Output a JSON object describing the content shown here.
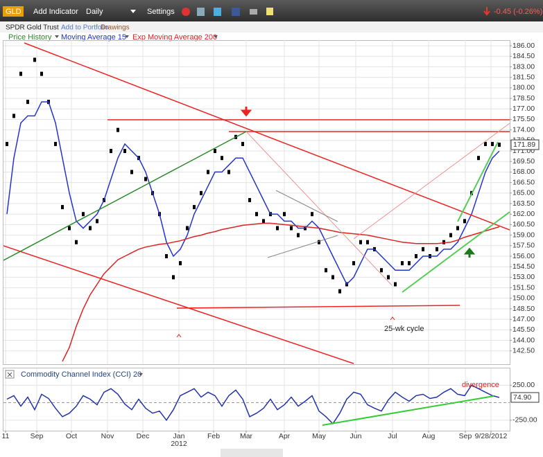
{
  "toolbar": {
    "symbol": "GLD",
    "add_indicator": "Add Indicator",
    "period": "Daily",
    "settings": "Settings",
    "change": "-0.45 (-0.26%)",
    "name": "SPDR Gold Trust",
    "add_portfolio": "Add to Portfolio",
    "drawings": "Drawings"
  },
  "annotations": {
    "cycle": "25-wk cycle",
    "divergence": "divergence",
    "year": "2012"
  },
  "chart_data": [
    {
      "type": "stock",
      "xlim": [
        -0.5,
        72.5
      ],
      "ylim": [
        140.6,
        186.8
      ],
      "grid": true,
      "yticks": [
        {
          "value": 186,
          "label": "186.00"
        },
        {
          "value": 184.5,
          "label": "184.50"
        },
        {
          "value": 183,
          "label": "183.00"
        },
        {
          "value": 181.5,
          "label": "181.50"
        },
        {
          "value": 180,
          "label": "180.00"
        },
        {
          "value": 178.5,
          "label": "178.50"
        },
        {
          "value": 177,
          "label": "177.00"
        },
        {
          "value": 175.5,
          "label": "175.50"
        },
        {
          "value": 174,
          "label": "174.00"
        },
        {
          "value": 172.5,
          "label": "172.50"
        },
        {
          "value": 171,
          "label": "171.00"
        },
        {
          "value": 169.5,
          "label": "169.50"
        },
        {
          "value": 168,
          "label": "168.00"
        },
        {
          "value": 166.5,
          "label": "166.50"
        },
        {
          "value": 165,
          "label": "165.00"
        },
        {
          "value": 163.5,
          "label": "163.50"
        },
        {
          "value": 162,
          "label": "162.00"
        },
        {
          "value": 160.5,
          "label": "160.50"
        },
        {
          "value": 159,
          "label": "159.00"
        },
        {
          "value": 157.5,
          "label": "157.50"
        },
        {
          "value": 156,
          "label": "156.00"
        },
        {
          "value": 154.5,
          "label": "154.50"
        },
        {
          "value": 153,
          "label": "153.00"
        },
        {
          "value": 151.5,
          "label": "151.50"
        },
        {
          "value": 150,
          "label": "150.00"
        },
        {
          "value": 148.5,
          "label": "148.50"
        },
        {
          "value": 147,
          "label": "147.00"
        },
        {
          "value": 145.5,
          "label": "145.50"
        },
        {
          "value": 144,
          "label": "144.00"
        },
        {
          "value": 142.5,
          "label": "142.50"
        }
      ],
      "last_label": {
        "value": 171.89,
        "label": "171.89"
      },
      "series": [
        {
          "name": "Price History",
          "color": "#000000",
          "style": "bar",
          "values": [
            172,
            176,
            182,
            178,
            184,
            182,
            178,
            172,
            163,
            160,
            158,
            162,
            160,
            161,
            164,
            171,
            174,
            171,
            168,
            170,
            167,
            165,
            162,
            156,
            153,
            155,
            160,
            163,
            165,
            168,
            171,
            170,
            168,
            173,
            172,
            164,
            162,
            161,
            162,
            160,
            162,
            160,
            159,
            160,
            162,
            158,
            154,
            153,
            151,
            152,
            155,
            158,
            158,
            157,
            154,
            153,
            152,
            155,
            155,
            156,
            157,
            156,
            157,
            158,
            159,
            160,
            161,
            165,
            170,
            172,
            172,
            171.89
          ]
        },
        {
          "name": "Moving Average 15",
          "color": "#2233cc",
          "style": "line",
          "values": [
            162,
            170,
            175,
            176,
            176,
            178,
            178,
            175,
            170,
            165,
            161,
            160,
            161,
            162,
            164,
            167,
            170,
            172,
            171,
            170,
            168,
            165,
            162,
            158,
            156,
            157,
            159,
            162,
            164,
            166,
            168,
            168,
            169,
            170,
            170,
            168,
            166,
            164,
            162,
            162,
            161,
            161,
            160,
            160,
            161,
            160,
            158,
            156,
            154,
            152,
            153,
            155,
            157,
            157,
            156,
            155,
            154,
            154,
            154,
            155,
            156,
            156,
            156,
            157,
            157,
            158,
            160,
            162,
            165,
            168,
            170,
            171
          ]
        },
        {
          "name": "Exp Moving Average 200",
          "color": "#dd2222",
          "style": "line",
          "values": [
            null,
            null,
            null,
            null,
            null,
            null,
            null,
            null,
            141,
            143,
            146,
            148.5,
            150.5,
            152,
            153.5,
            154.5,
            155.5,
            156,
            156.5,
            157,
            157.3,
            157.5,
            157.7,
            157.8,
            158,
            158.2,
            158.5,
            158.8,
            159,
            159.3,
            159.5,
            159.8,
            160,
            160.2,
            160.4,
            160.5,
            160.6,
            160.7,
            160.7,
            160.6,
            160.5,
            160.4,
            160.3,
            160.2,
            160.1,
            160,
            159.8,
            159.6,
            159.4,
            159.3,
            159.2,
            159.1,
            159,
            158.8,
            158.6,
            158.4,
            158.2,
            158,
            157.9,
            157.8,
            157.8,
            157.8,
            157.8,
            157.9,
            158,
            158.3,
            158.7,
            159,
            159.3,
            159.6,
            159.9,
            160.2
          ]
        }
      ]
    },
    {
      "type": "line",
      "title": "Commodity Channel Index (CCI) 20",
      "xlim": [
        -0.5,
        72.5
      ],
      "ylim": [
        -400,
        490
      ],
      "grid": true,
      "yticks": [
        {
          "value": 250,
          "label": "250.00"
        },
        {
          "value": -250,
          "label": "-250.00"
        }
      ],
      "xticks": [
        {
          "value": -0.2,
          "label": "11"
        },
        {
          "value": 4.3,
          "label": "Sep"
        },
        {
          "value": 9.3,
          "label": "Oct"
        },
        {
          "value": 14.5,
          "label": "Nov"
        },
        {
          "value": 19.6,
          "label": "Dec"
        },
        {
          "value": 24.8,
          "label": "Jan"
        },
        {
          "value": 29.8,
          "label": "Feb"
        },
        {
          "value": 34.5,
          "label": "Mar"
        },
        {
          "value": 40,
          "label": "Apr"
        },
        {
          "value": 45,
          "label": "May"
        },
        {
          "value": 50.3,
          "label": "Jun"
        },
        {
          "value": 55.6,
          "label": "Jul"
        },
        {
          "value": 60.8,
          "label": "Aug"
        },
        {
          "value": 66.1,
          "label": "Sep"
        },
        {
          "value": 69.8,
          "label": "9/28/2012"
        }
      ],
      "last_label": {
        "value": 74.9,
        "label": "74.90"
      },
      "series": [
        {
          "name": "CCI",
          "color": "#2233aa",
          "values": [
            50,
            100,
            -50,
            80,
            -100,
            120,
            60,
            -80,
            -200,
            -150,
            -50,
            100,
            50,
            -30,
            150,
            200,
            120,
            -20,
            -100,
            50,
            -80,
            -150,
            -120,
            -250,
            -100,
            100,
            150,
            200,
            80,
            150,
            100,
            -50,
            100,
            180,
            50,
            -200,
            -150,
            -80,
            50,
            -100,
            -30,
            80,
            -50,
            20,
            100,
            -120,
            -200,
            -300,
            -150,
            50,
            150,
            120,
            -30,
            -80,
            -120,
            40,
            150,
            80,
            20,
            100,
            120,
            60,
            80,
            150,
            200,
            120,
            100,
            250,
            200,
            150,
            100,
            74.9
          ]
        }
      ]
    }
  ]
}
